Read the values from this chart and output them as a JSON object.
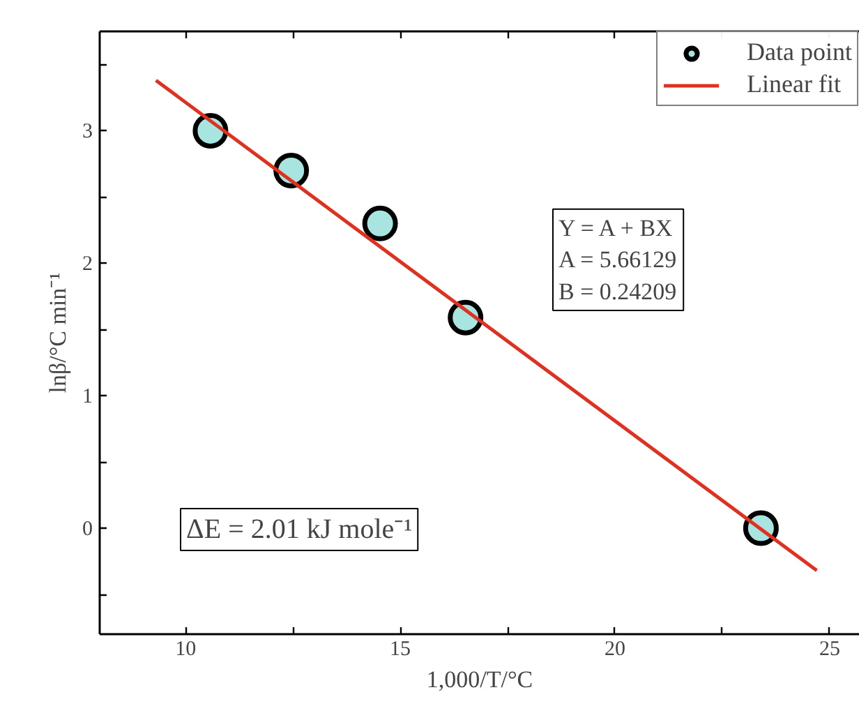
{
  "chart_data": {
    "type": "scatter",
    "xlabel": "1,000/T/°C",
    "ylabel": "lnβ/°C min⁻¹",
    "series": [
      {
        "name": "Data point",
        "color": "#a8e4e0",
        "marker": "circle",
        "x": [
          10.58,
          12.46,
          14.53,
          16.52,
          23.4
        ],
        "values": [
          3.0,
          2.7,
          2.3,
          1.59,
          0.0
        ]
      },
      {
        "name": "Linear fit",
        "type": "line",
        "color": "#e03020",
        "line_style": "solid",
        "x": [
          9.31,
          24.7
        ],
        "values": [
          3.38,
          -0.32
        ]
      }
    ],
    "xlim": [
      8,
      25.7
    ],
    "ylim": [
      -0.8,
      3.75
    ],
    "xticks": [
      10,
      {
        "value": 12.5,
        "label": null
      },
      15,
      {
        "value": 17.5,
        "label": null
      },
      20,
      {
        "value": 22.5,
        "label": null
      },
      25
    ],
    "yticks": [
      {
        "value": -0.5,
        "label": null
      },
      0,
      {
        "value": 0.5,
        "label": null
      },
      1,
      {
        "value": 1.5,
        "label": null
      },
      2,
      {
        "value": 2.5,
        "label": null
      },
      3,
      {
        "value": 3.5,
        "label": null
      }
    ],
    "annotations": [
      "Y = A + BX\nA = 5.66129\nB = 0.24209",
      "ΔE = 2.01 kJ mole⁻¹"
    ],
    "legend": "top right",
    "grid": false
  }
}
